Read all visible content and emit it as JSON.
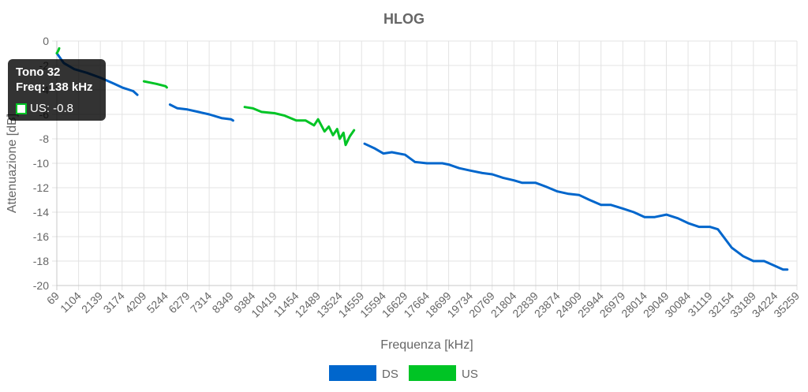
{
  "chart_data": {
    "type": "line",
    "title": "HLOG",
    "xlabel": "Frequenza [kHz]",
    "ylabel": "Attenuazione [dB]",
    "ylim": [
      -20,
      0
    ],
    "yticks": [
      0,
      -2,
      -4,
      -6,
      -8,
      -10,
      -12,
      -14,
      -16,
      -18,
      -20
    ],
    "xticks": [
      "69",
      "1104",
      "2139",
      "3174",
      "4209",
      "5244",
      "6279",
      "7314",
      "8349",
      "9384",
      "10419",
      "11454",
      "12489",
      "13524",
      "14559",
      "15594",
      "16629",
      "17664",
      "18699",
      "19734",
      "20769",
      "21804",
      "22839",
      "23874",
      "24909",
      "25944",
      "26979",
      "28014",
      "29049",
      "30084",
      "31119",
      "32154",
      "33189",
      "34224",
      "35259"
    ],
    "xlim": [
      69,
      35259
    ],
    "grid": true,
    "legend_position": "bottom",
    "series": [
      {
        "name": "DS",
        "color": "#0066cc",
        "segments": [
          [
            [
              69,
              -1.0
            ],
            [
              400,
              -1.8
            ],
            [
              900,
              -2.3
            ],
            [
              1500,
              -2.6
            ],
            [
              2139,
              -3.0
            ],
            [
              2800,
              -3.5
            ],
            [
              3174,
              -3.8
            ],
            [
              3700,
              -4.1
            ],
            [
              3900,
              -4.4
            ]
          ],
          [
            [
              5450,
              -5.2
            ],
            [
              5800,
              -5.5
            ],
            [
              6279,
              -5.6
            ],
            [
              6800,
              -5.8
            ],
            [
              7314,
              -6.0
            ],
            [
              7900,
              -6.3
            ],
            [
              8349,
              -6.4
            ],
            [
              8450,
              -6.5
            ]
          ],
          [
            [
              14700,
              -8.4
            ],
            [
              15200,
              -8.8
            ],
            [
              15594,
              -9.2
            ],
            [
              16000,
              -9.1
            ],
            [
              16629,
              -9.3
            ],
            [
              17100,
              -9.9
            ],
            [
              17664,
              -10.0
            ],
            [
              18400,
              -10.0
            ],
            [
              18699,
              -10.1
            ],
            [
              19200,
              -10.4
            ],
            [
              19734,
              -10.6
            ],
            [
              20300,
              -10.8
            ],
            [
              20769,
              -10.9
            ],
            [
              21300,
              -11.2
            ],
            [
              21804,
              -11.4
            ],
            [
              22200,
              -11.6
            ],
            [
              22839,
              -11.6
            ],
            [
              23300,
              -11.9
            ],
            [
              23874,
              -12.3
            ],
            [
              24400,
              -12.5
            ],
            [
              24909,
              -12.6
            ],
            [
              25400,
              -13.0
            ],
            [
              25944,
              -13.4
            ],
            [
              26400,
              -13.4
            ],
            [
              26979,
              -13.7
            ],
            [
              27500,
              -14.0
            ],
            [
              28014,
              -14.4
            ],
            [
              28500,
              -14.4
            ],
            [
              29049,
              -14.2
            ],
            [
              29600,
              -14.5
            ],
            [
              30084,
              -14.9
            ],
            [
              30600,
              -15.2
            ],
            [
              31119,
              -15.2
            ],
            [
              31500,
              -15.4
            ],
            [
              32154,
              -16.9
            ],
            [
              32700,
              -17.6
            ],
            [
              33189,
              -18.0
            ],
            [
              33700,
              -18.0
            ],
            [
              34224,
              -18.4
            ],
            [
              34600,
              -18.7
            ],
            [
              34800,
              -18.7
            ]
          ]
        ]
      },
      {
        "name": "US",
        "color": "#00c425",
        "segments": [
          [
            [
              69,
              -1.0
            ],
            [
              138,
              -0.8
            ],
            [
              180,
              -0.6
            ]
          ],
          [
            [
              4209,
              -3.3
            ],
            [
              4500,
              -3.4
            ],
            [
              4800,
              -3.5
            ],
            [
              5244,
              -3.7
            ],
            [
              5300,
              -3.8
            ]
          ],
          [
            [
              9000,
              -5.4
            ],
            [
              9384,
              -5.5
            ],
            [
              9800,
              -5.8
            ],
            [
              10419,
              -5.9
            ],
            [
              10900,
              -6.1
            ],
            [
              11454,
              -6.5
            ],
            [
              11900,
              -6.5
            ],
            [
              12300,
              -6.9
            ],
            [
              12489,
              -6.4
            ],
            [
              12800,
              -7.4
            ],
            [
              13000,
              -7.0
            ],
            [
              13200,
              -7.7
            ],
            [
              13400,
              -7.2
            ],
            [
              13524,
              -8.0
            ],
            [
              13700,
              -7.5
            ],
            [
              13800,
              -8.5
            ],
            [
              14000,
              -7.8
            ],
            [
              14200,
              -7.3
            ]
          ]
        ]
      }
    ]
  },
  "tooltip": {
    "title": "Tono 32",
    "freq": "Freq: 138 kHz",
    "value": "US: -0.8"
  }
}
